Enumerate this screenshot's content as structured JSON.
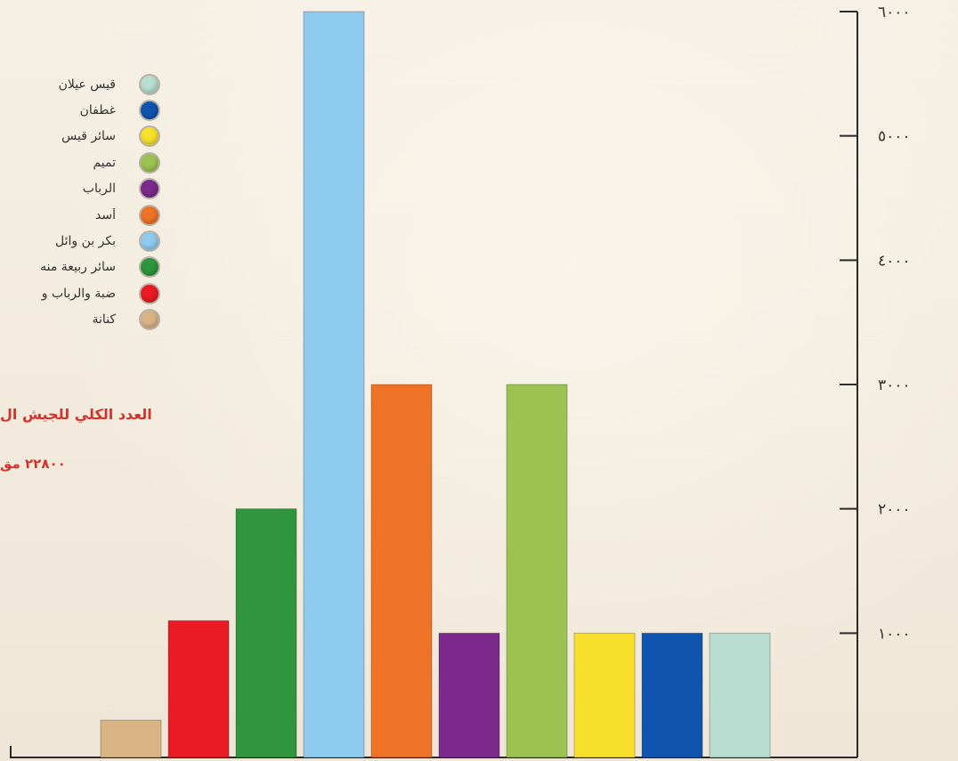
{
  "chart_data": {
    "type": "bar",
    "categories": [
      "كنانة",
      "ضبة والرباب و",
      "سائر ربيعة منه",
      "بكر بن وائل",
      "أسد",
      "الرباب",
      "تميم",
      "سائر قيس",
      "غطفان",
      "قيس عيلان"
    ],
    "values": [
      300,
      1100,
      2000,
      6000,
      3000,
      1000,
      3000,
      1000,
      1000,
      1000
    ],
    "colors": [
      "#d8b485",
      "#ea1b24",
      "#2f963d",
      "#8fcbee",
      "#ee7327",
      "#7c2a8c",
      "#9cc252",
      "#f7df2c",
      "#0f55b0",
      "#b9ddd0"
    ],
    "ylim": [
      0,
      6000
    ],
    "yticks": [
      0,
      1000,
      2000,
      3000,
      4000,
      5000,
      6000
    ],
    "ytick_labels": [
      "",
      "١٠٠٠",
      "٢٠٠٠",
      "٣٠٠٠",
      "٤٠٠٠",
      "٥٠٠٠",
      "٦٠٠٠"
    ],
    "axis_position": "right",
    "legend_position": "left",
    "grid": false,
    "legend": [
      {
        "label": "قيس عيلان",
        "color": "#b9ddd0"
      },
      {
        "label": "غطفان",
        "color": "#0f55b0"
      },
      {
        "label": "سائر قيس",
        "color": "#f7df2c"
      },
      {
        "label": "تميم",
        "color": "#9cc252"
      },
      {
        "label": "الرباب",
        "color": "#7c2a8c"
      },
      {
        "label": "أسد",
        "color": "#ee7327"
      },
      {
        "label": "بكر بن وائل",
        "color": "#8fcbee"
      },
      {
        "label": "سائر ربيعة منه",
        "color": "#2f963d"
      },
      {
        "label": "ضبة والرباب و",
        "color": "#ea1b24"
      },
      {
        "label": "كنانة",
        "color": "#d8b485"
      }
    ],
    "annotations": {
      "total_title": "العدد الكلي للجيش ال",
      "total_value": "٢٢٨٠٠ مق"
    }
  }
}
